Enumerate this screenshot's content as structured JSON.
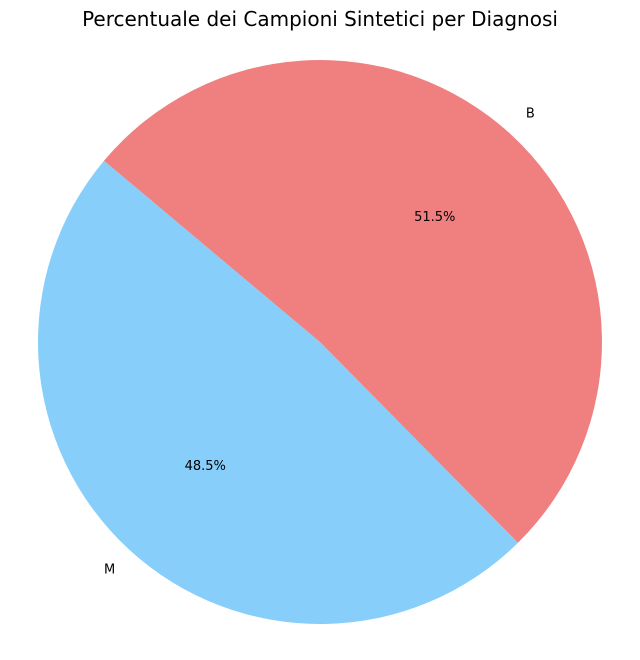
{
  "chart_data": {
    "type": "pie",
    "title": "Percentuale dei Campioni Sintetici per Diagnosi",
    "slices": [
      {
        "label": "M",
        "value": 48.5,
        "pct_label": "48.5%",
        "color": "#87CEFA"
      },
      {
        "label": "B",
        "value": 51.5,
        "pct_label": "51.5%",
        "color": "#F08080"
      }
    ],
    "start_angle_deg": 140,
    "direction": "counterclockwise"
  }
}
